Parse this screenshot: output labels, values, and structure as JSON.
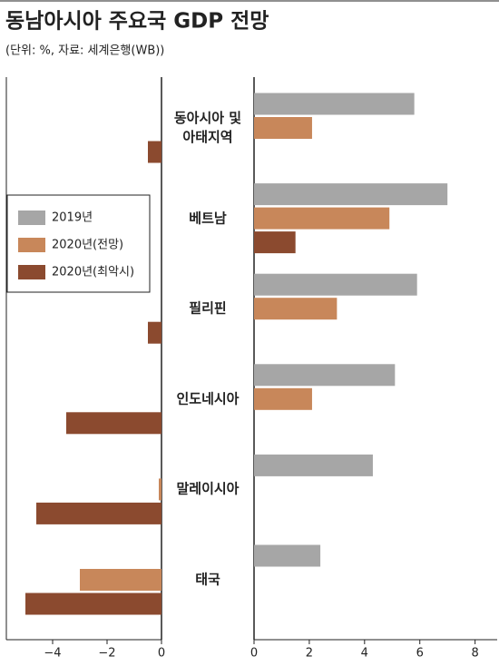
{
  "chart_data": {
    "type": "bar",
    "orientation": "horizontal",
    "title": "동남아시아 주요국 GDP 전망",
    "subtitle": "(단위: %, 자료: 세계은행(WB))",
    "categories": [
      "동아시아 및\n아태지역",
      "베트남",
      "필리핀",
      "인도네시아",
      "말레이시아",
      "태국"
    ],
    "series": [
      {
        "name": "2019년",
        "color": "#a6a6a6",
        "values": [
          5.8,
          7.0,
          5.9,
          5.1,
          4.3,
          2.4
        ]
      },
      {
        "name": "2020년(전망)",
        "color": "#c8875a",
        "values": [
          2.1,
          4.9,
          3.0,
          2.1,
          -0.1,
          -3.0
        ]
      },
      {
        "name": "2020년(최악시)",
        "color": "#8b4a2f",
        "values": [
          -0.5,
          1.5,
          -0.5,
          -3.5,
          -4.6,
          -5.0
        ]
      }
    ],
    "xlim_negative": [
      -5.7,
      0
    ],
    "xticks_negative": [
      {
        "value": -4,
        "label": "−4"
      },
      {
        "value": -2,
        "label": "−2"
      },
      0
    ],
    "xlim_positive": [
      0,
      8.8
    ],
    "xticks_positive": [
      0,
      2,
      4,
      6,
      8
    ],
    "legend": "left"
  }
}
